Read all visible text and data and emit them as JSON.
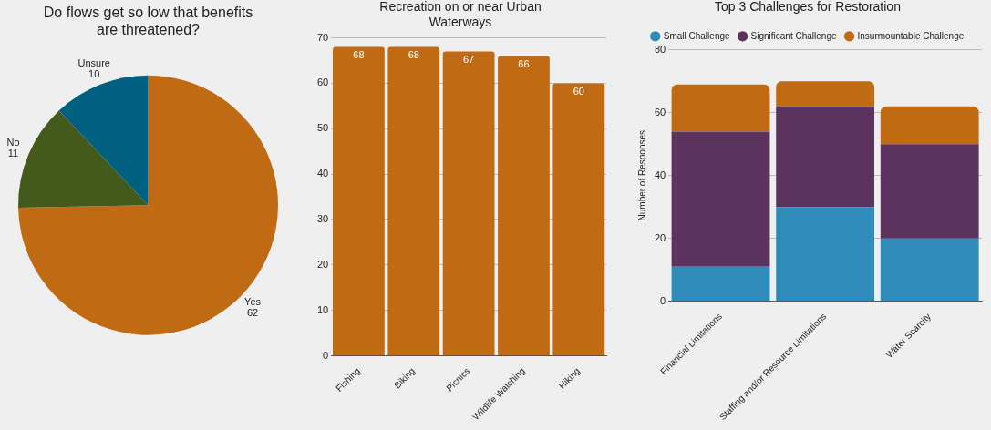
{
  "chart_data": [
    {
      "type": "pie",
      "title": "Do flows get so low that benefits are threatened?",
      "categories": [
        "Yes",
        "No",
        "Unsure"
      ],
      "values": [
        62,
        11,
        10
      ],
      "colors": [
        "#c06b14",
        "#445a1d",
        "#006080"
      ],
      "data_labels": true,
      "legend": false
    },
    {
      "type": "bar",
      "title": "Recreation on or near Urban Waterways",
      "categories": [
        "Fishing",
        "Biking",
        "Picnics",
        "Wildlife Watching",
        "Hiking"
      ],
      "values": [
        68,
        68,
        67,
        66,
        60
      ],
      "color": "#c06b14",
      "ylim": [
        0,
        70
      ],
      "yticks": [
        0,
        10,
        20,
        30,
        40,
        50,
        60,
        70
      ],
      "grid": "y",
      "data_labels": true,
      "legend": false
    },
    {
      "type": "bar",
      "title": "Top 3 Challenges for Restoration",
      "ylabel": "Number of Responses",
      "categories": [
        "Financial Limitations",
        "Staffing and/or Resource Limitations",
        "Water Scarcity"
      ],
      "stacked": true,
      "series": [
        {
          "name": "Small Challenge",
          "color": "#2e8bba",
          "values": [
            11,
            30,
            20
          ]
        },
        {
          "name": "Significant Challenge",
          "color": "#5c325e",
          "values": [
            43,
            32,
            30
          ]
        },
        {
          "name": "Insurmountable Challenge",
          "color": "#c06b14",
          "values": [
            15,
            8,
            12
          ]
        }
      ],
      "ylim": [
        0,
        80
      ],
      "yticks": [
        0,
        20,
        40,
        60,
        80
      ],
      "grid": "y",
      "legend": "top"
    }
  ]
}
